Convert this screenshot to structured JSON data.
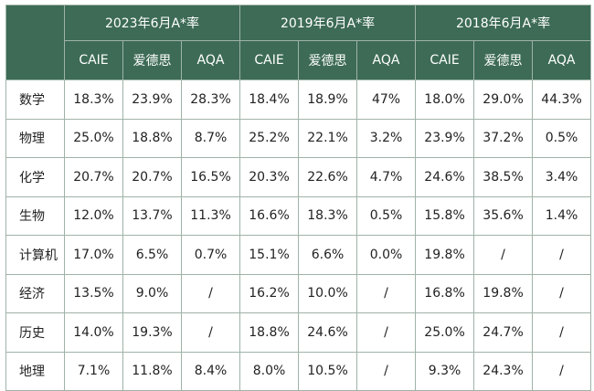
{
  "years": [
    "2023年6月A*率",
    "2019年6月A*率",
    "2018年6月A*率"
  ],
  "boards": [
    "CAIE",
    "爱德思",
    "AQA"
  ],
  "rows": [
    {
      "subject": "数学",
      "values": [
        "18.3%",
        "23.9%",
        "28.3%",
        "18.4%",
        "18.9%",
        "47%",
        "18.0%",
        "29.0%",
        "44.3%"
      ]
    },
    {
      "subject": "物理",
      "values": [
        "25.0%",
        "18.8%",
        "8.7%",
        "25.2%",
        "22.1%",
        "3.2%",
        "23.9%",
        "37.2%",
        "0.5%"
      ]
    },
    {
      "subject": "化学",
      "values": [
        "20.7%",
        "20.7%",
        "16.5%",
        "20.3%",
        "22.6%",
        "4.7%",
        "24.6%",
        "38.5%",
        "3.4%"
      ]
    },
    {
      "subject": "生物",
      "values": [
        "12.0%",
        "13.7%",
        "11.3%",
        "16.6%",
        "18.3%",
        "0.5%",
        "15.8%",
        "35.6%",
        "1.4%"
      ]
    },
    {
      "subject": "计算机",
      "values": [
        "17.0%",
        "6.5%",
        "0.7%",
        "15.1%",
        "6.6%",
        "0.0%",
        "19.8%",
        "/",
        "/"
      ]
    },
    {
      "subject": "经济",
      "values": [
        "13.5%",
        "9.0%",
        "/",
        "16.2%",
        "10.0%",
        "/",
        "16.8%",
        "19.8%",
        "/"
      ]
    },
    {
      "subject": "历史",
      "values": [
        "14.0%",
        "19.3%",
        "/",
        "18.8%",
        "24.6%",
        "/",
        "25.0%",
        "24.7%",
        "/"
      ]
    },
    {
      "subject": "地理",
      "values": [
        "7.1%",
        "11.8%",
        "8.4%",
        "8.0%",
        "10.5%",
        "/",
        "9.3%",
        "24.3%",
        "/"
      ]
    }
  ],
  "colors": {
    "header_bg": "#3d6b56",
    "header_text": "#ffffff",
    "border": "#9fb3a8"
  }
}
